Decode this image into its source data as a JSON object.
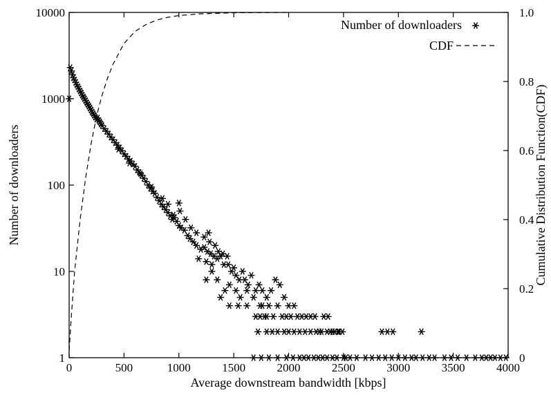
{
  "chart_data": {
    "type": "scatter",
    "title": "",
    "xlabel": "Average downstream bandwidth [kbps]",
    "ylabel": "Number of downloaders",
    "y2label": "Cumulative Distribution Function(CDF)",
    "xlim": [
      0,
      4000
    ],
    "ylim": [
      1,
      10000
    ],
    "y2lim": [
      0,
      1.0
    ],
    "yscale": "log",
    "grid": false,
    "legend_position": "top-right",
    "x_ticks": [
      "0",
      "500",
      "1000",
      "1500",
      "2000",
      "2500",
      "3000",
      "3500",
      "4000"
    ],
    "y_ticks": [
      "1",
      "10",
      "100",
      "1000",
      "10000"
    ],
    "y2_ticks": [
      "0",
      "0.2",
      "0.4",
      "0.6",
      "0.8",
      "1.0"
    ],
    "series": [
      {
        "name": "Number of downloaders",
        "marker": "asterisk",
        "axis": "left",
        "points": [
          [
            0,
            1000
          ],
          [
            10,
            2300
          ],
          [
            20,
            2100
          ],
          [
            30,
            1900
          ],
          [
            40,
            1750
          ],
          [
            50,
            1650
          ],
          [
            60,
            1550
          ],
          [
            70,
            1450
          ],
          [
            80,
            1380
          ],
          [
            90,
            1300
          ],
          [
            100,
            1230
          ],
          [
            110,
            1170
          ],
          [
            120,
            1100
          ],
          [
            130,
            1050
          ],
          [
            140,
            1000
          ],
          [
            150,
            950
          ],
          [
            160,
            900
          ],
          [
            170,
            860
          ],
          [
            180,
            820
          ],
          [
            190,
            780
          ],
          [
            200,
            740
          ],
          [
            210,
            700
          ],
          [
            220,
            670
          ],
          [
            230,
            640
          ],
          [
            240,
            610
          ],
          [
            250,
            580
          ],
          [
            260,
            600
          ],
          [
            270,
            560
          ],
          [
            280,
            540
          ],
          [
            290,
            510
          ],
          [
            300,
            490
          ],
          [
            320,
            450
          ],
          [
            340,
            420
          ],
          [
            360,
            390
          ],
          [
            380,
            360
          ],
          [
            400,
            335
          ],
          [
            420,
            310
          ],
          [
            440,
            290
          ],
          [
            460,
            270
          ],
          [
            480,
            250
          ],
          [
            500,
            230
          ],
          [
            520,
            215
          ],
          [
            540,
            200
          ],
          [
            560,
            190
          ],
          [
            580,
            175
          ],
          [
            600,
            165
          ],
          [
            620,
            150
          ],
          [
            640,
            140
          ],
          [
            660,
            130
          ],
          [
            680,
            120
          ],
          [
            700,
            110
          ],
          [
            720,
            100
          ],
          [
            740,
            92
          ],
          [
            760,
            85
          ],
          [
            780,
            80
          ],
          [
            800,
            72
          ],
          [
            820,
            66
          ],
          [
            840,
            60
          ],
          [
            860,
            56
          ],
          [
            880,
            52
          ],
          [
            900,
            48
          ],
          [
            920,
            44
          ],
          [
            940,
            40
          ],
          [
            960,
            42
          ],
          [
            980,
            38
          ],
          [
            1000,
            34
          ],
          [
            1020,
            32
          ],
          [
            1050,
            30
          ],
          [
            1080,
            26
          ],
          [
            1100,
            24
          ],
          [
            1130,
            22
          ],
          [
            1160,
            20
          ],
          [
            1200,
            18
          ],
          [
            1230,
            19
          ],
          [
            1260,
            17
          ],
          [
            1290,
            16
          ],
          [
            1320,
            15
          ],
          [
            1350,
            14
          ],
          [
            1380,
            15
          ],
          [
            1410,
            12
          ],
          [
            450,
            260
          ],
          [
            550,
            180
          ],
          [
            650,
            135
          ],
          [
            750,
            95
          ],
          [
            850,
            70
          ],
          [
            950,
            45
          ],
          [
            1010,
            50
          ],
          [
            1060,
            40
          ],
          [
            1110,
            32
          ],
          [
            1160,
            28
          ],
          [
            1230,
            25
          ],
          [
            1280,
            22
          ],
          [
            1360,
            17
          ],
          [
            1400,
            16
          ],
          [
            1440,
            15
          ],
          [
            1300,
            12
          ],
          [
            1250,
            13
          ],
          [
            1180,
            14
          ],
          [
            900,
            60
          ],
          [
            1000,
            62
          ],
          [
            1270,
            28
          ],
          [
            1330,
            20
          ],
          [
            1450,
            12
          ],
          [
            1480,
            10
          ],
          [
            1500,
            11
          ],
          [
            1520,
            9
          ],
          [
            1550,
            8
          ],
          [
            1580,
            10
          ],
          [
            1600,
            8
          ],
          [
            1630,
            7
          ],
          [
            1660,
            9
          ],
          [
            1700,
            6
          ],
          [
            1730,
            7
          ],
          [
            1760,
            6
          ],
          [
            1800,
            5
          ],
          [
            1840,
            6
          ],
          [
            1880,
            8
          ],
          [
            1920,
            7
          ],
          [
            1960,
            5
          ],
          [
            2000,
            4
          ],
          [
            1250,
            8
          ],
          [
            1300,
            10
          ],
          [
            1350,
            8
          ],
          [
            1420,
            6
          ],
          [
            1460,
            7
          ],
          [
            1520,
            6
          ],
          [
            1560,
            5
          ],
          [
            1620,
            4
          ],
          [
            1680,
            5
          ],
          [
            1740,
            4
          ],
          [
            1380,
            5
          ],
          [
            1460,
            4
          ],
          [
            1540,
            4
          ],
          [
            1620,
            6
          ],
          [
            1780,
            3
          ],
          [
            1820,
            4
          ],
          [
            1860,
            3
          ],
          [
            1900,
            4
          ],
          [
            1940,
            3
          ],
          [
            1980,
            3
          ],
          [
            1700,
            3
          ],
          [
            1740,
            3
          ],
          [
            1760,
            4
          ],
          [
            1800,
            3
          ],
          [
            2020,
            3
          ],
          [
            2050,
            4
          ],
          [
            2080,
            3
          ],
          [
            2120,
            3
          ],
          [
            2160,
            3
          ],
          [
            2200,
            3
          ],
          [
            2240,
            3
          ],
          [
            2280,
            2
          ],
          [
            2320,
            3
          ],
          [
            2360,
            3
          ],
          [
            2400,
            2
          ],
          [
            2450,
            2
          ],
          [
            2490,
            2
          ],
          [
            2520,
            1
          ],
          [
            1720,
            2
          ],
          [
            1800,
            2
          ],
          [
            1850,
            2
          ],
          [
            1900,
            2
          ],
          [
            1960,
            2
          ],
          [
            2000,
            2
          ],
          [
            2050,
            2
          ],
          [
            2100,
            2
          ],
          [
            2150,
            2
          ],
          [
            2200,
            2
          ],
          [
            2250,
            2
          ],
          [
            2300,
            2
          ],
          [
            2350,
            2
          ],
          [
            2380,
            2
          ],
          [
            2420,
            2
          ],
          [
            2460,
            2
          ],
          [
            2850,
            2
          ],
          [
            2900,
            2
          ],
          [
            2950,
            2
          ],
          [
            3210,
            2
          ],
          [
            1680,
            1
          ],
          [
            1750,
            1
          ],
          [
            1820,
            1
          ],
          [
            1900,
            1
          ],
          [
            1980,
            1
          ],
          [
            2040,
            1
          ],
          [
            2100,
            1
          ],
          [
            2140,
            1
          ],
          [
            2180,
            1
          ],
          [
            2230,
            1
          ],
          [
            2270,
            1
          ],
          [
            2310,
            1
          ],
          [
            2350,
            1
          ],
          [
            2400,
            1
          ],
          [
            2440,
            1
          ],
          [
            2500,
            1
          ],
          [
            2560,
            1
          ],
          [
            2620,
            1
          ],
          [
            2700,
            1
          ],
          [
            2760,
            1
          ],
          [
            2820,
            1
          ],
          [
            2880,
            1
          ],
          [
            2940,
            1
          ],
          [
            3000,
            1
          ],
          [
            3060,
            1
          ],
          [
            3120,
            1
          ],
          [
            3160,
            1
          ],
          [
            3220,
            1
          ],
          [
            3280,
            1
          ],
          [
            3330,
            1
          ],
          [
            3420,
            1
          ],
          [
            3480,
            1
          ],
          [
            3540,
            1
          ],
          [
            3620,
            1
          ],
          [
            3700,
            1
          ],
          [
            3760,
            1
          ],
          [
            3800,
            1
          ],
          [
            3840,
            1
          ],
          [
            3880,
            1
          ],
          [
            3930,
            1
          ],
          [
            3980,
            1
          ]
        ]
      },
      {
        "name": "CDF",
        "line_style": "dashed",
        "axis": "right",
        "points": [
          [
            0,
            0.02
          ],
          [
            20,
            0.12
          ],
          [
            50,
            0.25
          ],
          [
            100,
            0.4
          ],
          [
            150,
            0.52
          ],
          [
            200,
            0.62
          ],
          [
            250,
            0.7
          ],
          [
            300,
            0.76
          ],
          [
            350,
            0.81
          ],
          [
            400,
            0.85
          ],
          [
            450,
            0.88
          ],
          [
            500,
            0.91
          ],
          [
            600,
            0.945
          ],
          [
            700,
            0.965
          ],
          [
            800,
            0.978
          ],
          [
            900,
            0.986
          ],
          [
            1000,
            0.991
          ],
          [
            1200,
            0.996
          ],
          [
            1500,
            0.999
          ],
          [
            2000,
            1.0
          ]
        ]
      }
    ]
  }
}
